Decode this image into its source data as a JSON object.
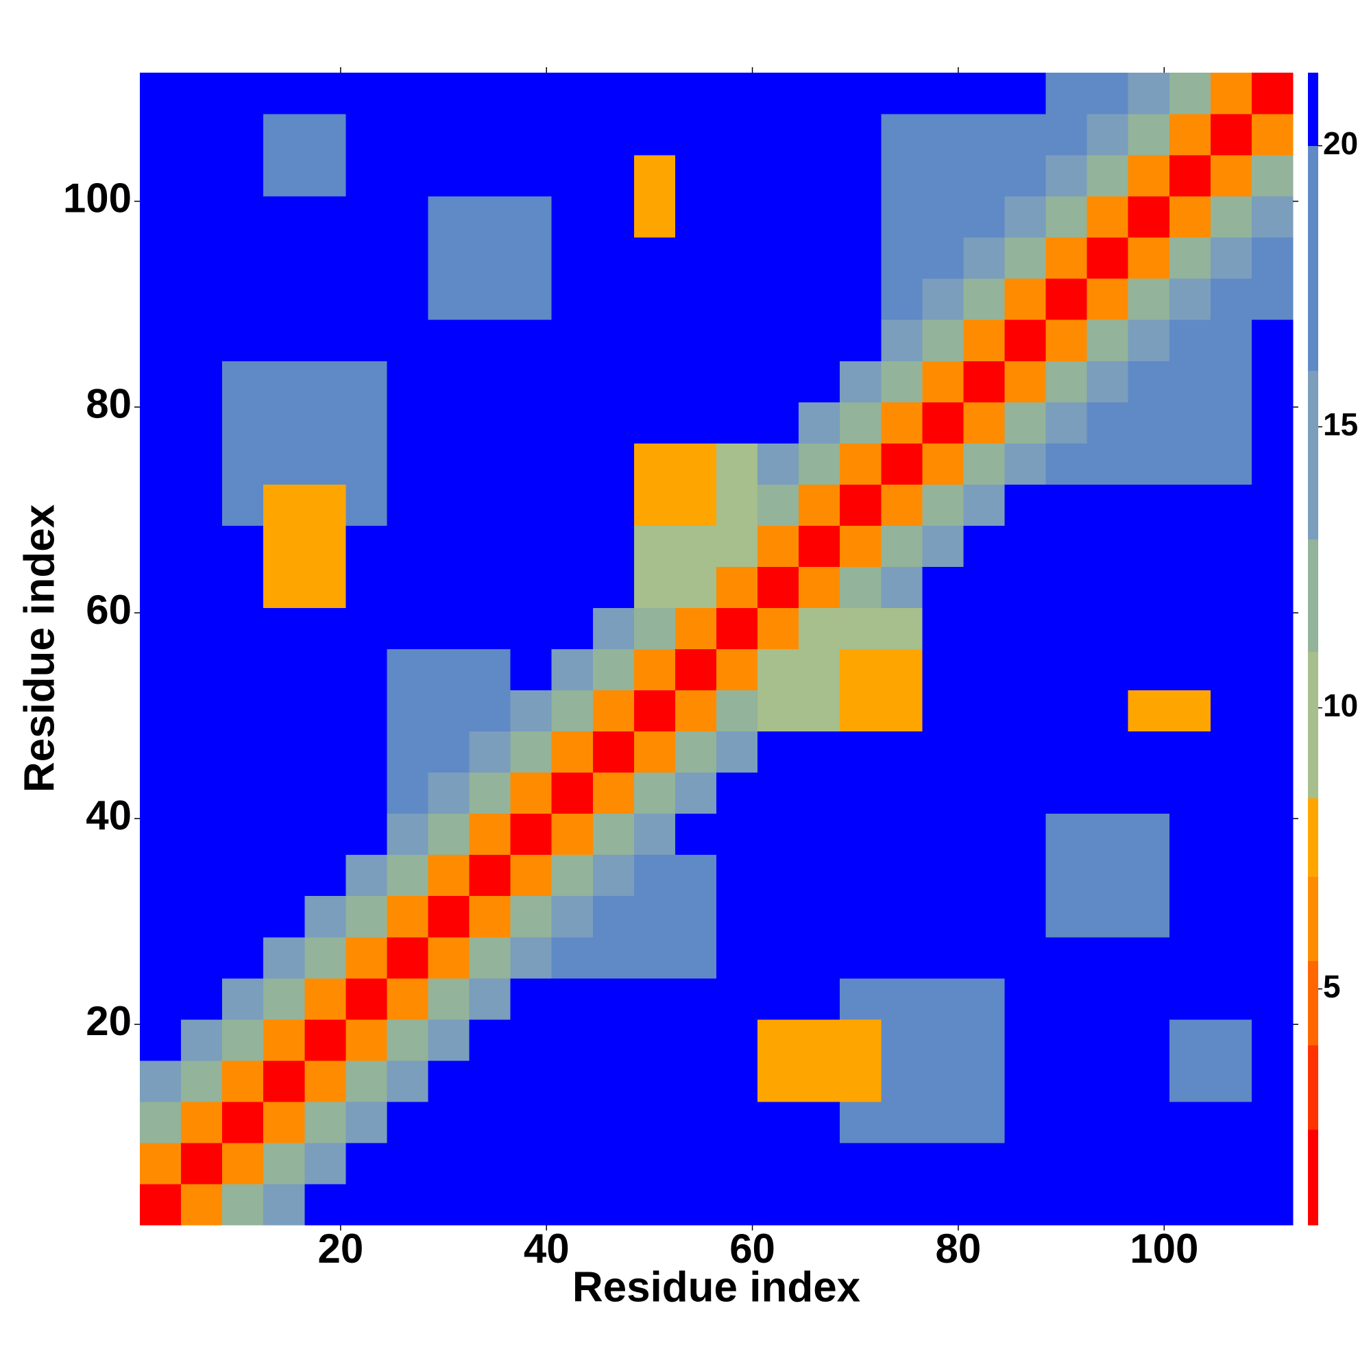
{
  "chart_data": {
    "type": "heatmap",
    "xlabel": "Residue index",
    "ylabel": "Residue index",
    "xlim": [
      0.5,
      112.5
    ],
    "ylim": [
      0.5,
      112.5
    ],
    "xticks": [
      20,
      40,
      60,
      80,
      100
    ],
    "yticks": [
      20,
      40,
      60,
      80,
      100
    ],
    "xbins": [
      0.5,
      4.5,
      8.5,
      12.5,
      16.5,
      20.5,
      24.5,
      28.5,
      32.5,
      36.5,
      40.5,
      44.5,
      48.5,
      52.5,
      56.5,
      60.5,
      64.5,
      68.5,
      72.5,
      76.5,
      80.5,
      84.5,
      88.5,
      92.5,
      96.5,
      100.5,
      104.5,
      108.5,
      112.5
    ],
    "ybins": [
      0.5,
      4.5,
      8.5,
      12.5,
      16.5,
      20.5,
      24.5,
      28.5,
      32.5,
      36.5,
      40.5,
      44.5,
      48.5,
      52.5,
      56.5,
      60.5,
      64.5,
      68.5,
      72.5,
      76.5,
      80.5,
      84.5,
      88.5,
      92.5,
      96.5,
      100.5,
      104.5,
      108.5,
      112.5
    ],
    "z": [
      [
        2,
        7,
        12,
        16,
        21,
        21,
        21,
        21,
        21,
        21,
        21,
        21,
        21,
        21,
        21,
        21,
        21,
        21,
        21,
        21,
        21,
        21,
        21,
        21,
        21,
        21,
        21,
        21
      ],
      [
        7,
        2,
        7,
        12,
        16,
        21,
        21,
        21,
        21,
        21,
        21,
        21,
        21,
        21,
        21,
        21,
        21,
        21,
        21,
        21,
        21,
        21,
        21,
        21,
        21,
        21,
        21,
        21
      ],
      [
        12,
        7,
        2,
        7,
        12,
        16,
        21,
        21,
        21,
        21,
        21,
        21,
        21,
        21,
        21,
        21,
        21,
        17,
        17,
        17,
        17,
        21,
        21,
        21,
        21,
        21,
        21,
        21
      ],
      [
        16,
        12,
        7,
        2,
        7,
        12,
        16,
        21,
        21,
        21,
        21,
        21,
        21,
        21,
        21,
        8,
        8,
        8,
        17,
        17,
        17,
        21,
        21,
        21,
        21,
        19,
        19,
        21
      ],
      [
        21,
        16,
        12,
        7,
        2,
        7,
        12,
        16,
        21,
        21,
        21,
        21,
        21,
        21,
        21,
        8,
        8,
        8,
        17,
        17,
        17,
        21,
        21,
        21,
        21,
        19,
        19,
        21
      ],
      [
        21,
        21,
        16,
        12,
        7,
        2,
        7,
        12,
        16,
        21,
        21,
        21,
        21,
        21,
        21,
        21,
        21,
        17,
        17,
        17,
        17,
        21,
        21,
        21,
        21,
        21,
        21,
        21
      ],
      [
        21,
        21,
        21,
        16,
        12,
        7,
        2,
        7,
        12,
        16,
        18,
        18,
        18,
        18,
        21,
        21,
        21,
        21,
        21,
        21,
        21,
        21,
        21,
        21,
        21,
        21,
        21,
        21
      ],
      [
        21,
        21,
        21,
        21,
        16,
        12,
        7,
        2,
        7,
        12,
        16,
        18,
        18,
        18,
        21,
        21,
        21,
        21,
        21,
        21,
        21,
        21,
        18,
        18,
        18,
        21,
        21,
        21
      ],
      [
        21,
        21,
        21,
        21,
        21,
        16,
        12,
        7,
        2,
        7,
        12,
        16,
        18,
        18,
        21,
        21,
        21,
        21,
        21,
        21,
        21,
        21,
        18,
        18,
        18,
        21,
        21,
        21
      ],
      [
        21,
        21,
        21,
        21,
        21,
        21,
        16,
        12,
        7,
        2,
        7,
        12,
        16,
        21,
        21,
        21,
        21,
        21,
        21,
        21,
        21,
        21,
        18,
        18,
        18,
        21,
        21,
        21
      ],
      [
        21,
        21,
        21,
        21,
        21,
        21,
        18,
        16,
        12,
        7,
        2,
        7,
        12,
        16,
        21,
        21,
        21,
        21,
        21,
        21,
        21,
        21,
        21,
        21,
        21,
        21,
        21,
        21
      ],
      [
        21,
        21,
        21,
        21,
        21,
        21,
        18,
        18,
        16,
        12,
        7,
        2,
        7,
        12,
        16,
        21,
        21,
        21,
        21,
        21,
        21,
        21,
        21,
        21,
        21,
        21,
        21,
        21
      ],
      [
        21,
        21,
        21,
        21,
        21,
        21,
        18,
        18,
        18,
        16,
        12,
        7,
        2,
        7,
        12,
        11,
        11,
        8,
        8,
        21,
        21,
        21,
        21,
        21,
        8,
        8,
        21,
        21
      ],
      [
        21,
        21,
        21,
        21,
        21,
        21,
        18,
        18,
        18,
        21,
        16,
        12,
        7,
        2,
        7,
        11,
        11,
        8,
        8,
        21,
        21,
        21,
        21,
        21,
        21,
        21,
        21,
        21
      ],
      [
        21,
        21,
        21,
        21,
        21,
        21,
        21,
        21,
        21,
        21,
        21,
        16,
        12,
        7,
        2,
        7,
        11,
        11,
        11,
        21,
        21,
        21,
        21,
        21,
        21,
        21,
        21,
        21
      ],
      [
        21,
        21,
        21,
        8,
        8,
        21,
        21,
        21,
        21,
        21,
        21,
        21,
        11,
        11,
        7,
        2,
        7,
        12,
        16,
        21,
        21,
        21,
        21,
        21,
        21,
        21,
        21,
        21
      ],
      [
        21,
        21,
        21,
        8,
        8,
        21,
        21,
        21,
        21,
        21,
        21,
        21,
        11,
        11,
        11,
        7,
        2,
        7,
        12,
        16,
        21,
        21,
        21,
        21,
        21,
        21,
        21,
        21
      ],
      [
        21,
        21,
        17,
        8,
        8,
        17,
        21,
        21,
        21,
        21,
        21,
        21,
        8,
        8,
        11,
        12,
        7,
        2,
        7,
        12,
        16,
        21,
        21,
        21,
        21,
        21,
        21,
        21
      ],
      [
        21,
        21,
        17,
        17,
        17,
        17,
        21,
        21,
        21,
        21,
        21,
        21,
        8,
        8,
        11,
        16,
        12,
        7,
        2,
        7,
        12,
        16,
        19,
        18,
        18,
        18,
        18,
        21
      ],
      [
        21,
        21,
        17,
        17,
        17,
        17,
        21,
        21,
        21,
        21,
        21,
        21,
        21,
        21,
        21,
        21,
        16,
        12,
        7,
        2,
        7,
        12,
        16,
        18,
        18,
        18,
        18,
        21
      ],
      [
        21,
        21,
        17,
        17,
        17,
        17,
        21,
        21,
        21,
        21,
        21,
        21,
        21,
        21,
        21,
        21,
        21,
        16,
        12,
        7,
        2,
        7,
        12,
        16,
        18,
        18,
        18,
        21
      ],
      [
        21,
        21,
        21,
        21,
        21,
        21,
        21,
        21,
        21,
        21,
        21,
        21,
        21,
        21,
        21,
        21,
        21,
        21,
        16,
        12,
        7,
        2,
        7,
        12,
        16,
        18,
        18,
        21
      ],
      [
        21,
        21,
        21,
        21,
        21,
        21,
        21,
        18,
        18,
        18,
        21,
        21,
        21,
        21,
        21,
        21,
        21,
        21,
        19,
        16,
        12,
        7,
        2,
        7,
        12,
        16,
        17,
        17
      ],
      [
        21,
        21,
        21,
        21,
        21,
        21,
        21,
        18,
        18,
        18,
        21,
        21,
        21,
        21,
        21,
        21,
        21,
        21,
        18,
        18,
        16,
        12,
        7,
        2,
        7,
        12,
        16,
        17
      ],
      [
        21,
        21,
        21,
        21,
        21,
        21,
        21,
        18,
        18,
        18,
        21,
        21,
        8,
        21,
        21,
        21,
        21,
        21,
        18,
        18,
        18,
        16,
        12,
        7,
        2,
        7,
        12,
        16
      ],
      [
        21,
        21,
        21,
        19,
        19,
        21,
        21,
        21,
        21,
        21,
        21,
        21,
        8,
        21,
        21,
        21,
        21,
        21,
        18,
        18,
        18,
        18,
        16,
        12,
        7,
        2,
        7,
        12
      ],
      [
        21,
        21,
        21,
        19,
        19,
        21,
        21,
        21,
        21,
        21,
        21,
        21,
        21,
        21,
        21,
        21,
        21,
        21,
        18,
        18,
        18,
        18,
        17,
        16,
        12,
        7,
        2,
        7
      ],
      [
        21,
        21,
        21,
        21,
        21,
        21,
        21,
        21,
        21,
        21,
        21,
        21,
        21,
        21,
        21,
        21,
        21,
        21,
        21,
        21,
        21,
        21,
        17,
        17,
        16,
        12,
        7,
        2
      ]
    ],
    "clim": [
      0.8,
      21.3
    ],
    "cticks": [
      5,
      10,
      15,
      20
    ],
    "colorscale": [
      {
        "max": 2.5,
        "color": "#ff0000"
      },
      {
        "max": 4,
        "color": "#ff3300"
      },
      {
        "max": 5.5,
        "color": "#ff6600"
      },
      {
        "max": 7,
        "color": "#ff8c00"
      },
      {
        "max": 8.4,
        "color": "#ffa500"
      },
      {
        "max": 11,
        "color": "#a6bf8c"
      },
      {
        "max": 13,
        "color": "#93b39a"
      },
      {
        "max": 16,
        "color": "#7a9ebc"
      },
      {
        "max": 20,
        "color": "#5f8ac6"
      },
      {
        "max": 21.3,
        "color": "#0000ff"
      }
    ]
  }
}
